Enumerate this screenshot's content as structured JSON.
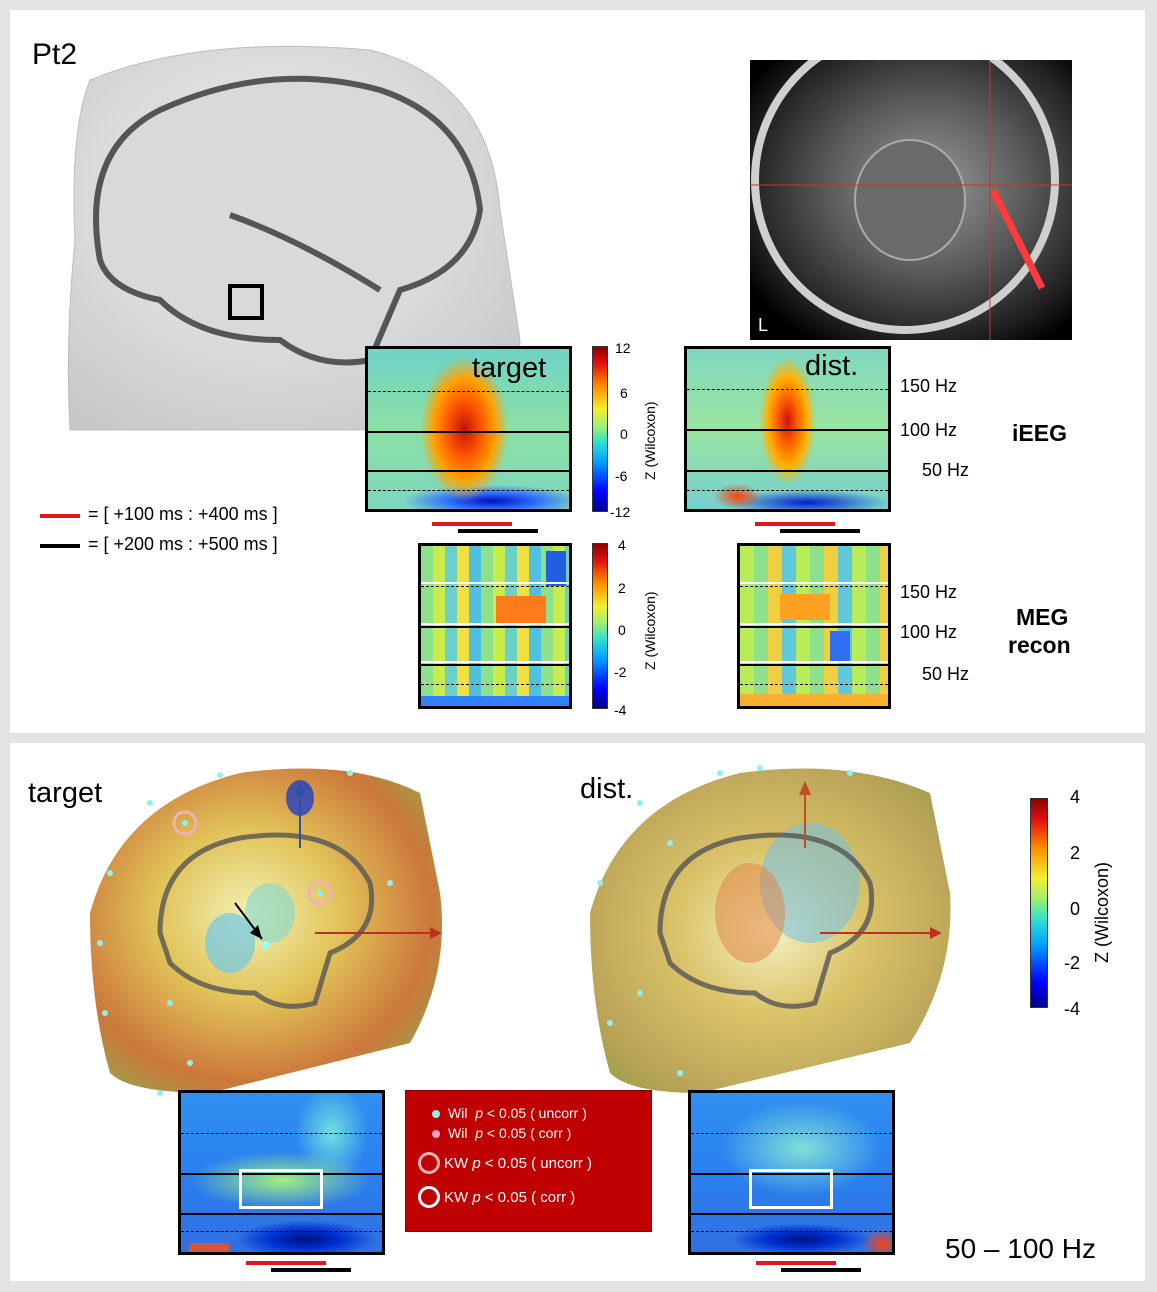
{
  "patient": "Pt2",
  "mri": {
    "orientation_label": "L"
  },
  "ieeg": {
    "row_label": "iEEG",
    "colorbar": {
      "ticks": [
        "12",
        "6",
        "0",
        "-6",
        "-12"
      ],
      "label": "Z (Wilcoxon)"
    },
    "freq_labels": [
      "150 Hz",
      "100 Hz",
      "50 Hz"
    ],
    "target_title": "target",
    "dist_title": "dist."
  },
  "meg": {
    "row_label_1": "MEG",
    "row_label_2": "recon",
    "colorbar": {
      "ticks": [
        "4",
        "2",
        "0",
        "-2",
        "-4"
      ],
      "label": "Z (Wilcoxon)"
    },
    "freq_labels": [
      "150 Hz",
      "100 Hz",
      "50 Hz"
    ]
  },
  "time_legend": {
    "red": "= [ +100 ms : +400 ms ]",
    "black": "= [ +200 ms : +500 ms ]",
    "red_color": "#e8141b",
    "black_color": "#000000"
  },
  "bottom": {
    "target_title": "target",
    "dist_title": "dist.",
    "colorbar": {
      "ticks": [
        "4",
        "2",
        "0",
        "-2",
        "-4"
      ],
      "label": "Z (Wilcoxon)"
    },
    "band": "50 – 100 Hz",
    "legend": [
      {
        "test": "Wil",
        "p": "p",
        "text": " < 0.05 ( uncorr )"
      },
      {
        "test": "Wil",
        "p": "p",
        "text": " < 0.05 ( corr )"
      },
      {
        "test": "KW",
        "p": "p",
        "text": " < 0.05 ( uncorr )"
      },
      {
        "test": "KW",
        "p": "p",
        "text": " < 0.05 ( corr )"
      }
    ],
    "legend_bg": "#c00000"
  }
}
